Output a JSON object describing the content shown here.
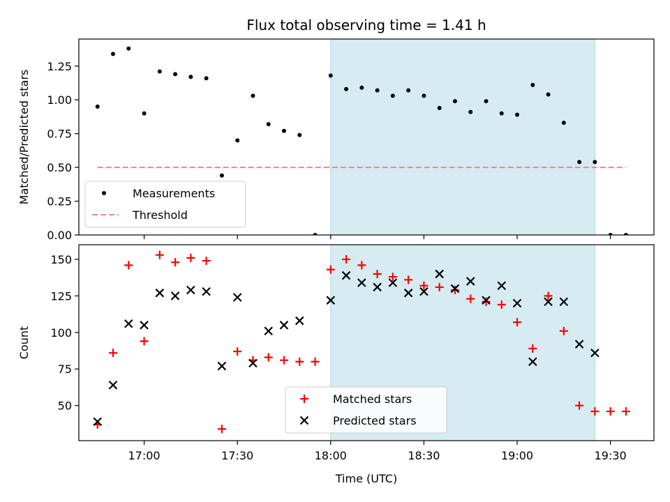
{
  "title": "Flux total observing time = 1.41 h",
  "colors": {
    "measurement": "#000000",
    "threshold": "#ff7f7f",
    "matched": "#ff0000",
    "predicted": "#000000",
    "highlight": "#add8e6"
  },
  "chart_data": [
    {
      "type": "scatter",
      "name": "top-panel",
      "ylabel": "Matched/Predicted stars",
      "xlabel": "",
      "ylim": [
        0,
        1.45
      ],
      "xlim": [
        "16:39",
        "19:44"
      ],
      "yticks": [
        0.0,
        0.25,
        0.5,
        0.75,
        1.0,
        1.25
      ],
      "ytick_labels": [
        "0.00",
        "0.25",
        "0.50",
        "0.75",
        "1.00",
        "1.25"
      ],
      "highlight_span": [
        "18:00",
        "19:25"
      ],
      "legend": {
        "placement": "lower-left",
        "entries": [
          "Measurements",
          "Threshold"
        ]
      },
      "series": [
        {
          "name": "Measurements",
          "kind": "dot",
          "points": [
            [
              "16:45",
              0.95
            ],
            [
              "16:50",
              1.34
            ],
            [
              "16:55",
              1.38
            ],
            [
              "17:00",
              0.9
            ],
            [
              "17:05",
              1.21
            ],
            [
              "17:10",
              1.19
            ],
            [
              "17:15",
              1.17
            ],
            [
              "17:20",
              1.16
            ],
            [
              "17:25",
              0.44
            ],
            [
              "17:30",
              0.7
            ],
            [
              "17:35",
              1.03
            ],
            [
              "17:40",
              0.82
            ],
            [
              "17:45",
              0.77
            ],
            [
              "17:50",
              0.74
            ],
            [
              "17:55",
              0.0
            ],
            [
              "18:00",
              1.18
            ],
            [
              "18:05",
              1.08
            ],
            [
              "18:10",
              1.09
            ],
            [
              "18:15",
              1.07
            ],
            [
              "18:20",
              1.03
            ],
            [
              "18:25",
              1.07
            ],
            [
              "18:30",
              1.03
            ],
            [
              "18:35",
              0.94
            ],
            [
              "18:40",
              0.99
            ],
            [
              "18:45",
              0.91
            ],
            [
              "18:50",
              0.99
            ],
            [
              "18:55",
              0.9
            ],
            [
              "19:00",
              0.89
            ],
            [
              "19:05",
              1.11
            ],
            [
              "19:10",
              1.04
            ],
            [
              "19:15",
              0.83
            ],
            [
              "19:20",
              0.54
            ],
            [
              "19:25",
              0.54
            ],
            [
              "19:30",
              0.0
            ],
            [
              "19:35",
              0.0
            ]
          ]
        },
        {
          "name": "Threshold",
          "kind": "dashed-line",
          "points": [
            [
              "16:45",
              0.5
            ],
            [
              "19:35",
              0.5
            ]
          ]
        }
      ]
    },
    {
      "type": "scatter",
      "name": "bottom-panel",
      "ylabel": "Count",
      "xlabel": "Time (UTC)",
      "ylim": [
        26,
        160
      ],
      "xlim": [
        "16:39",
        "19:44"
      ],
      "yticks": [
        50,
        75,
        100,
        125,
        150
      ],
      "ytick_labels": [
        "50",
        "75",
        "100",
        "125",
        "150"
      ],
      "xticks": [
        "17:00",
        "17:30",
        "18:00",
        "18:30",
        "19:00",
        "19:30"
      ],
      "xtick_labels": [
        "17:00",
        "17:30",
        "18:00",
        "18:30",
        "19:00",
        "19:30"
      ],
      "highlight_span": [
        "18:00",
        "19:25"
      ],
      "legend": {
        "placement": "lower-center",
        "entries": [
          "Matched stars",
          "Predicted stars"
        ]
      },
      "series": [
        {
          "name": "Matched stars",
          "kind": "plus",
          "points": [
            [
              "16:45",
              37
            ],
            [
              "16:50",
              86
            ],
            [
              "16:55",
              146
            ],
            [
              "17:00",
              94
            ],
            [
              "17:05",
              153
            ],
            [
              "17:10",
              148
            ],
            [
              "17:15",
              151
            ],
            [
              "17:20",
              149
            ],
            [
              "17:25",
              34
            ],
            [
              "17:30",
              87
            ],
            [
              "17:35",
              81
            ],
            [
              "17:40",
              83
            ],
            [
              "17:45",
              81
            ],
            [
              "17:50",
              80
            ],
            [
              "17:55",
              80
            ],
            [
              "18:00",
              143
            ],
            [
              "18:05",
              150
            ],
            [
              "18:10",
              146
            ],
            [
              "18:15",
              140
            ],
            [
              "18:20",
              138
            ],
            [
              "18:25",
              136
            ],
            [
              "18:30",
              132
            ],
            [
              "18:35",
              131
            ],
            [
              "18:40",
              129
            ],
            [
              "18:45",
              123
            ],
            [
              "18:50",
              121
            ],
            [
              "18:55",
              119
            ],
            [
              "19:00",
              107
            ],
            [
              "19:05",
              89
            ],
            [
              "19:10",
              125
            ],
            [
              "19:15",
              101
            ],
            [
              "19:20",
              50
            ],
            [
              "19:25",
              46
            ],
            [
              "19:30",
              46
            ],
            [
              "19:35",
              46
            ]
          ]
        },
        {
          "name": "Predicted stars",
          "kind": "x",
          "points": [
            [
              "16:45",
              39
            ],
            [
              "16:50",
              64
            ],
            [
              "16:55",
              106
            ],
            [
              "17:00",
              105
            ],
            [
              "17:05",
              127
            ],
            [
              "17:10",
              125
            ],
            [
              "17:15",
              129
            ],
            [
              "17:20",
              128
            ],
            [
              "17:25",
              77
            ],
            [
              "17:30",
              124
            ],
            [
              "17:35",
              79
            ],
            [
              "17:40",
              101
            ],
            [
              "17:45",
              105
            ],
            [
              "17:50",
              108
            ],
            [
              "18:00",
              122
            ],
            [
              "18:05",
              139
            ],
            [
              "18:10",
              134
            ],
            [
              "18:15",
              131
            ],
            [
              "18:20",
              134
            ],
            [
              "18:25",
              127
            ],
            [
              "18:30",
              128
            ],
            [
              "18:35",
              140
            ],
            [
              "18:40",
              130
            ],
            [
              "18:45",
              135
            ],
            [
              "18:50",
              122
            ],
            [
              "18:55",
              132
            ],
            [
              "19:00",
              120
            ],
            [
              "19:05",
              80
            ],
            [
              "19:10",
              121
            ],
            [
              "19:15",
              121
            ],
            [
              "19:20",
              92
            ],
            [
              "19:25",
              86
            ]
          ]
        }
      ]
    }
  ]
}
